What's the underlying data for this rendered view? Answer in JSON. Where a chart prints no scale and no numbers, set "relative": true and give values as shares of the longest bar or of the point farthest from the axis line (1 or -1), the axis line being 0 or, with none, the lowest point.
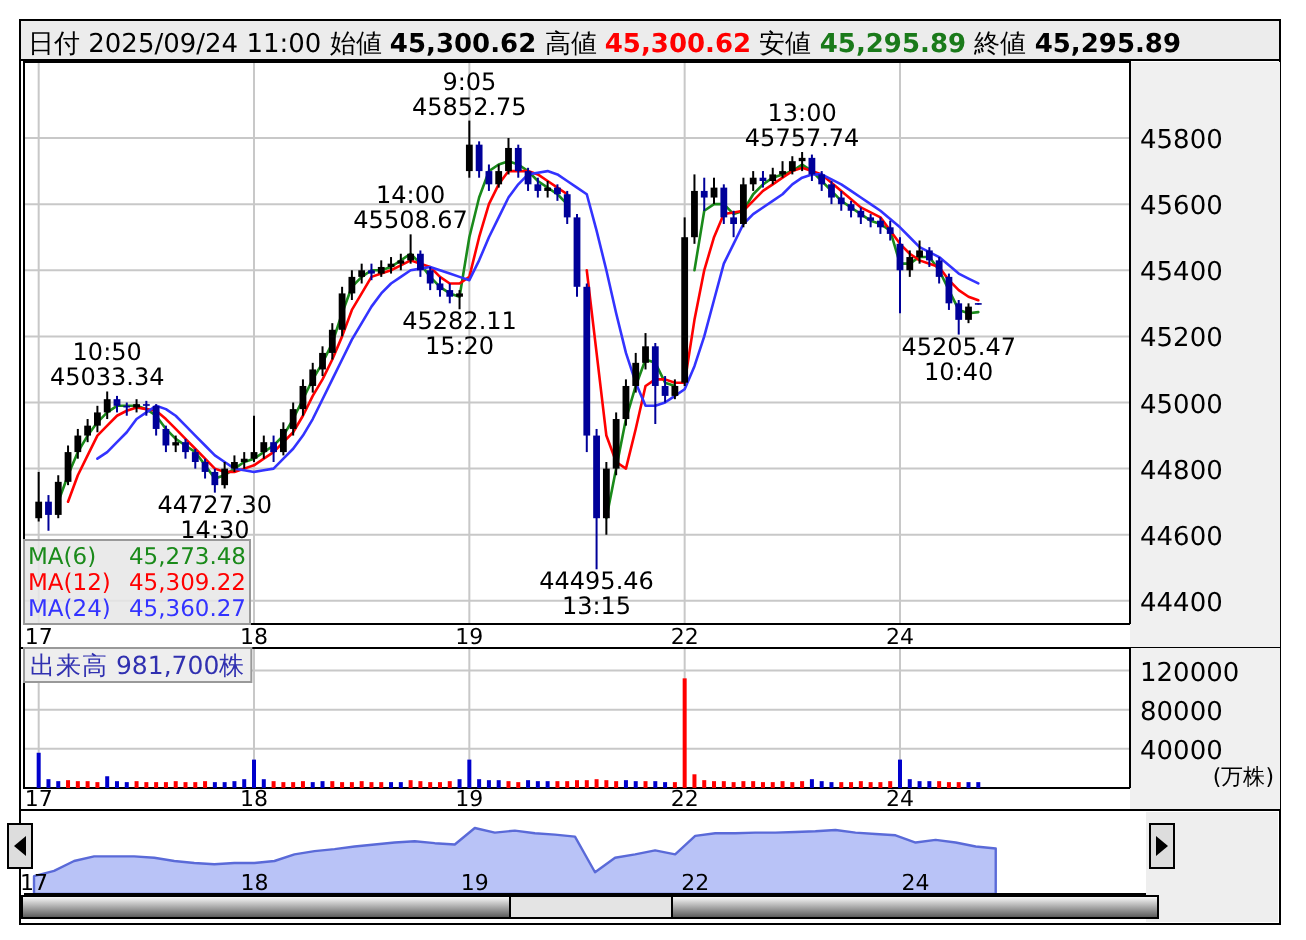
{
  "chart_data": [
    {
      "type": "candlestick",
      "title": "日付 2025/09/24 11:00",
      "ylim": [
        44330,
        46030
      ],
      "yticks": [
        44400,
        44600,
        44800,
        45000,
        45200,
        45400,
        45600,
        45800
      ],
      "grid": true,
      "legend": "bottom left",
      "categories": [
        null,
        "17",
        null,
        null,
        null,
        null,
        null,
        null,
        null,
        null,
        null,
        null,
        null,
        null,
        null,
        null,
        null,
        null,
        null,
        null,
        null,
        null,
        null,
        "18",
        null,
        null,
        null,
        null,
        null,
        null,
        null,
        null,
        null,
        null,
        null,
        null,
        null,
        null,
        null,
        null,
        null,
        null,
        null,
        null,
        null,
        "19",
        null,
        null,
        null,
        null,
        null,
        null,
        null,
        null,
        null,
        null,
        null,
        null,
        null,
        null,
        null,
        null,
        null,
        null,
        null,
        null,
        null,
        "22",
        null,
        null,
        null,
        null,
        null,
        null,
        null,
        null,
        null,
        null,
        null,
        null,
        null,
        null,
        null,
        null,
        null,
        null,
        null,
        null,
        null,
        "24",
        null,
        null,
        null,
        null,
        null,
        null,
        null,
        null,
        null,
        null,
        null,
        null,
        null,
        null,
        null,
        null,
        null,
        null,
        null,
        null,
        null,
        null,
        null
      ],
      "series": [
        {
          "colors": [
            null,
            "#000000",
            "#000099",
            "#000000",
            "#000000",
            "#000000",
            "#000000",
            "#000000",
            "#000000",
            "#000099",
            "#000099",
            "#000000",
            "#000099",
            "#000099",
            "#000099",
            "#000000",
            "#000099",
            "#000099",
            "#000099",
            "#000099",
            "#000000",
            "#000000",
            "#000000",
            "#000000",
            "#000000",
            "#000099",
            "#000000",
            "#000000",
            "#000000",
            "#000000",
            "#000000",
            "#000000",
            "#000000",
            "#000000",
            "#000000",
            "#000099",
            "#000000",
            "#000000",
            "#000000",
            "#000000",
            "#000099",
            "#000099",
            "#000099",
            "#000099",
            "#000000",
            "#000000",
            "#000099",
            "#000099",
            "#000000",
            "#000000",
            "#000099",
            "#000099",
            "#000099",
            "#000000",
            "#000099",
            "#000099",
            "#000099",
            "#000099",
            "#000099",
            "#000000",
            "#000000",
            "#000000",
            "#000000",
            "#000000",
            "#000099",
            "#000099",
            "#000000",
            "#000000",
            "#000000",
            "#000099",
            "#000000",
            "#000099",
            "#000099",
            "#000000",
            "#000000",
            "#000099",
            "#000000",
            "#000000",
            "#000000",
            "#000000",
            "#000099",
            "#000099",
            "#000099",
            "#000099",
            "#000099",
            "#000099",
            "#000099",
            "#000099",
            "#000099",
            "#000099",
            "#000000",
            "#000000",
            "#000099",
            "#000099",
            "#000099",
            "#000099",
            "#000000",
            "#000099",
            null,
            null,
            null,
            null,
            null,
            null,
            null,
            null,
            null,
            null,
            null,
            null,
            null,
            null,
            null
          ],
          "ohlc": [
            null,
            [
              44650,
              44790,
              44640,
              44700
            ],
            [
              44700,
              44720,
              44612.07,
              44660
            ],
            [
              44660,
              44780,
              44650,
              44760
            ],
            [
              44760,
              44870,
              44750,
              44850
            ],
            [
              44850,
              44920,
              44830,
              44900
            ],
            [
              44900,
              44950,
              44880,
              44930
            ],
            [
              44930,
              44990,
              44910,
              44970
            ],
            [
              44970,
              45033.34,
              44950,
              45010
            ],
            [
              45010,
              45020,
              44970,
              44990
            ],
            [
              44990,
              45000,
              44960,
              44985
            ],
            [
              44985,
              45010,
              44970,
              44995
            ],
            [
              44995,
              45005,
              44960,
              44990
            ],
            [
              44990,
              44995,
              44900,
              44920
            ],
            [
              44920,
              44930,
              44850,
              44870
            ],
            [
              44870,
              44900,
              44850,
              44880
            ],
            [
              44880,
              44890,
              44830,
              44850
            ],
            [
              44850,
              44860,
              44800,
              44820
            ],
            [
              44820,
              44830,
              44770,
              44790
            ],
            [
              44790,
              44800,
              44727.3,
              44750
            ],
            [
              44750,
              44820,
              44740,
              44800
            ],
            [
              44800,
              44840,
              44790,
              44820
            ],
            [
              44820,
              44850,
              44800,
              44830
            ],
            [
              44830,
              44960,
              44820,
              44850
            ],
            [
              44850,
              44900,
              44830,
              44880
            ],
            [
              44880,
              44900,
              44820,
              44850
            ],
            [
              44850,
              44940,
              44840,
              44920
            ],
            [
              44920,
              45000,
              44900,
              44980
            ],
            [
              44980,
              45070,
              44960,
              45050
            ],
            [
              45050,
              45120,
              45030,
              45100
            ],
            [
              45100,
              45170,
              45080,
              45150
            ],
            [
              45150,
              45240,
              45130,
              45220
            ],
            [
              45220,
              45350,
              45200,
              45330
            ],
            [
              45330,
              45400,
              45310,
              45380
            ],
            [
              45380,
              45420,
              45360,
              45400
            ],
            [
              45400,
              45420,
              45370,
              45390
            ],
            [
              45390,
              45430,
              45380,
              45410
            ],
            [
              45410,
              45440,
              45390,
              45420
            ],
            [
              45420,
              45450,
              45400,
              45430
            ],
            [
              45430,
              45508.67,
              45420,
              45450
            ],
            [
              45450,
              45460,
              45380,
              45400
            ],
            [
              45400,
              45410,
              45340,
              45360
            ],
            [
              45360,
              45380,
              45320,
              45340
            ],
            [
              45340,
              45360,
              45300,
              45320
            ],
            [
              45320,
              45340,
              45282.11,
              45330
            ],
            [
              45700,
              45852.75,
              45680,
              45780
            ],
            [
              45780,
              45790,
              45680,
              45700
            ],
            [
              45700,
              45720,
              45640,
              45660
            ],
            [
              45660,
              45720,
              45650,
              45700
            ],
            [
              45700,
              45800,
              45690,
              45770
            ],
            [
              45770,
              45780,
              45680,
              45700
            ],
            [
              45700,
              45710,
              45640,
              45660
            ],
            [
              45660,
              45680,
              45620,
              45640
            ],
            [
              45640,
              45670,
              45620,
              45650
            ],
            [
              45650,
              45660,
              45610,
              45630
            ],
            [
              45630,
              45640,
              45540,
              45560
            ],
            [
              45560,
              45570,
              45320,
              45350
            ],
            [
              45350,
              45360,
              44850,
              44900
            ],
            [
              44900,
              44920,
              44495.46,
              44650
            ],
            [
              44650,
              44820,
              44600,
              44800
            ],
            [
              44800,
              44970,
              44780,
              44950
            ],
            [
              44950,
              45070,
              44930,
              45050
            ],
            [
              45050,
              45150,
              45030,
              45120
            ],
            [
              45120,
              45210,
              45100,
              45170
            ],
            [
              45170,
              45180,
              44935,
              45050
            ],
            [
              45050,
              45080,
              45000,
              45020
            ],
            [
              45020,
              45070,
              45010,
              45050
            ],
            [
              45060,
              45560,
              45050,
              45500
            ],
            [
              45500,
              45690,
              45480,
              45640
            ],
            [
              45640,
              45680,
              45580,
              45620
            ],
            [
              45620,
              45680,
              45600,
              45650
            ],
            [
              45650,
              45660,
              45540,
              45560
            ],
            [
              45560,
              45580,
              45500,
              45540
            ],
            [
              45540,
              45680,
              45530,
              45660
            ],
            [
              45660,
              45700,
              45640,
              45680
            ],
            [
              45680,
              45700,
              45650,
              45670
            ],
            [
              45670,
              45710,
              45660,
              45690
            ],
            [
              45690,
              45730,
              45680,
              45700
            ],
            [
              45700,
              45745,
              45690,
              45730
            ],
            [
              45730,
              45757.74,
              45700,
              45740
            ],
            [
              45740,
              45750,
              45670,
              45690
            ],
            [
              45690,
              45700,
              45640,
              45660
            ],
            [
              45660,
              45670,
              45600,
              45620
            ],
            [
              45620,
              45640,
              45580,
              45600
            ],
            [
              45600,
              45610,
              45560,
              45580
            ],
            [
              45580,
              45590,
              45540,
              45560
            ],
            [
              45560,
              45570,
              45530,
              45550
            ],
            [
              45550,
              45560,
              45510,
              45530
            ],
            [
              45530,
              45550,
              45490,
              45510
            ],
            [
              45480,
              45500,
              45270,
              45400
            ],
            [
              45400,
              45460,
              45380,
              45440
            ],
            [
              45440,
              45490,
              45420,
              45460
            ],
            [
              45460,
              45470,
              45410,
              45430
            ],
            [
              45430,
              45440,
              45360,
              45380
            ],
            [
              45380,
              45390,
              45280,
              45300
            ],
            [
              45300,
              45310,
              45205.47,
              45250
            ],
            [
              45250,
              45300,
              45240,
              45290
            ],
            [
              45300.62,
              45300.62,
              45295.89,
              45295.89
            ],
            null,
            null,
            null,
            null,
            null,
            null,
            null,
            null,
            null,
            null,
            null,
            null,
            null,
            null,
            null
          ]
        },
        {
          "type": "line",
          "name": "MA(6)",
          "color": "#1a8a1a",
          "values": [
            null,
            null,
            null,
            44700,
            44780,
            44850,
            44900,
            44940,
            44970,
            44990,
            44990,
            44990,
            44980,
            44960,
            44920,
            44890,
            44870,
            44850,
            44810,
            44770,
            44780,
            44800,
            44820,
            44830,
            44850,
            44870,
            44900,
            44950,
            45010,
            45070,
            45120,
            45180,
            45270,
            45350,
            45380,
            45400,
            45400,
            45410,
            45430,
            45450,
            45420,
            45380,
            45350,
            45330,
            45320,
            45500,
            45620,
            45700,
            45720,
            45730,
            45720,
            45700,
            45670,
            45650,
            45630,
            45600,
            null,
            null,
            null,
            44650,
            44800,
            44950,
            45050,
            45130,
            45120,
            45060,
            45050,
            null,
            45400,
            45580,
            45600,
            45600,
            45570,
            45580,
            45630,
            45660,
            45680,
            45690,
            45700,
            45720,
            45700,
            45670,
            45640,
            45610,
            45590,
            45570,
            45550,
            45540,
            45520,
            45420,
            45420,
            45440,
            45440,
            45400,
            45340,
            45280,
            45270,
            45273.48,
            null,
            null,
            null,
            null,
            null,
            null,
            null,
            null,
            null,
            null,
            null,
            null,
            null,
            null,
            null
          ]
        },
        {
          "type": "line",
          "name": "MA(12)",
          "color": "#ff0000",
          "values": [
            null,
            null,
            null,
            null,
            44700,
            44780,
            44840,
            44900,
            44930,
            44960,
            44975,
            44985,
            44980,
            44975,
            44950,
            44920,
            44890,
            44860,
            44830,
            44800,
            44790,
            44790,
            44800,
            44810,
            44830,
            44850,
            44880,
            44910,
            44960,
            45020,
            45070,
            45130,
            45200,
            45280,
            45330,
            45380,
            45390,
            45400,
            45415,
            45430,
            45420,
            45410,
            45380,
            45360,
            45360,
            45380,
            45500,
            45600,
            45660,
            45700,
            45700,
            45700,
            45690,
            45670,
            45650,
            45630,
            null,
            45400,
            45150,
            44900,
            44820,
            44800,
            44920,
            45050,
            45070,
            45070,
            45060,
            45060,
            45250,
            45400,
            45500,
            45570,
            45575,
            45580,
            45610,
            45640,
            45660,
            45680,
            45700,
            45710,
            45700,
            45690,
            45665,
            45640,
            45615,
            45590,
            45575,
            45560,
            45520,
            45480,
            45450,
            45430,
            45420,
            45410,
            45370,
            45340,
            45320,
            45309.22,
            null,
            null,
            null,
            null,
            null,
            null,
            null,
            null,
            null,
            null,
            null,
            null,
            null,
            null,
            null
          ]
        },
        {
          "type": "line",
          "name": "MA(24)",
          "color": "#3333ff",
          "values": [
            null,
            null,
            null,
            null,
            null,
            null,
            null,
            44830,
            44850,
            44880,
            44910,
            44950,
            44970,
            44990,
            44980,
            44960,
            44930,
            44900,
            44870,
            44840,
            44820,
            44800,
            44795,
            44790,
            44795,
            44800,
            44830,
            44860,
            44900,
            44950,
            45010,
            45070,
            45130,
            45190,
            45240,
            45290,
            45330,
            45360,
            45380,
            45400,
            45405,
            45410,
            45400,
            45390,
            45380,
            45370,
            45430,
            45500,
            45560,
            45620,
            45660,
            45690,
            45695,
            45700,
            45690,
            45670,
            45650,
            45630,
            45520,
            45400,
            45270,
            45150,
            45060,
            44990,
            44990,
            45000,
            45020,
            45040,
            45110,
            45200,
            45310,
            45420,
            45480,
            45540,
            45570,
            45590,
            45610,
            45630,
            45660,
            45680,
            45690,
            45690,
            45675,
            45660,
            45640,
            45620,
            45600,
            45580,
            45555,
            45530,
            45500,
            45470,
            45455,
            45440,
            45415,
            45390,
            45375,
            45360.27,
            null,
            null,
            null,
            null,
            null,
            null,
            null,
            null,
            null,
            null,
            null,
            null,
            null,
            null,
            null
          ]
        }
      ],
      "annotations": [
        "始値 45,300.62",
        "高値 45,300.62",
        "安値 45,295.89",
        "終値 45,295.89",
        "45,273.48",
        "45,309.22",
        "45,360.27",
        {
          "text": "10:50\n45033.34",
          "y": 45033.34
        },
        {
          "text": "44727.30\n14:30",
          "y": 44727.3
        },
        {
          "text": "14:00\n45508.67",
          "y": 45508.67
        },
        {
          "text": "45282.11\n15:20",
          "y": 45282.11
        },
        {
          "text": "9:05\n45852.75",
          "y": 45852.75
        },
        {
          "text": "44495.46\n13:15",
          "y": 44495.46
        },
        {
          "text": "13:00\n45757.74",
          "y": 45757.74
        },
        {
          "text": "45205.47\n10:40",
          "y": 45205.47
        }
      ]
    },
    {
      "type": "bar",
      "title": "出来高 981,700株",
      "ylabel": "(万株)",
      "ylim": [
        0,
        143000
      ],
      "yticks": [
        40000,
        80000,
        120000
      ],
      "grid": true,
      "categories": [
        null,
        "17",
        null,
        null,
        null,
        null,
        null,
        null,
        null,
        null,
        null,
        null,
        null,
        null,
        null,
        null,
        null,
        null,
        null,
        null,
        null,
        null,
        null,
        "18",
        null,
        null,
        null,
        null,
        null,
        null,
        null,
        null,
        null,
        null,
        null,
        null,
        null,
        null,
        null,
        null,
        null,
        null,
        null,
        null,
        null,
        "19",
        null,
        null,
        null,
        null,
        null,
        null,
        null,
        null,
        null,
        null,
        null,
        null,
        null,
        null,
        null,
        null,
        null,
        null,
        null,
        null,
        null,
        "22",
        null,
        null,
        null,
        null,
        null,
        null,
        null,
        null,
        null,
        null,
        null,
        null,
        null,
        null,
        null,
        null,
        null,
        null,
        null,
        null,
        null,
        "24",
        null,
        null,
        null,
        null,
        null,
        null,
        null,
        null,
        null,
        null,
        null,
        null,
        null,
        null,
        null,
        null,
        null,
        null,
        null,
        null,
        null,
        null,
        null
      ],
      "series": [
        {
          "values": [
            null,
            36000,
            9000,
            7000,
            8000,
            7000,
            7000,
            6000,
            12000,
            7000,
            6000,
            7000,
            6000,
            6000,
            6000,
            7000,
            6000,
            6000,
            7000,
            6000,
            6000,
            7000,
            9000,
            29000,
            9000,
            7000,
            6000,
            6000,
            7000,
            6000,
            7000,
            7000,
            6000,
            6000,
            7000,
            6000,
            6000,
            6000,
            6000,
            8000,
            7000,
            6000,
            6000,
            7000,
            9000,
            29000,
            9000,
            8000,
            8000,
            7000,
            6000,
            8000,
            7000,
            7000,
            7000,
            7000,
            8000,
            8000,
            9000,
            8000,
            7000,
            8000,
            7000,
            7000,
            7000,
            6000,
            6000,
            112000,
            14000,
            8000,
            7000,
            7000,
            6000,
            7000,
            7000,
            6000,
            6000,
            7000,
            6000,
            7000,
            9000,
            7000,
            6000,
            6000,
            6000,
            7000,
            6000,
            6000,
            7000,
            29000,
            9000,
            7000,
            7000,
            7000,
            6000,
            6000,
            6000,
            6000,
            null,
            null,
            null,
            null,
            null,
            null,
            null,
            null,
            null,
            null,
            null,
            null,
            null,
            null,
            null
          ],
          "colors": [
            null,
            "#0000cc",
            "#0000cc",
            "#0000cc",
            "#ff0000",
            "#ff0000",
            "#ff0000",
            "#ff0000",
            "#0000cc",
            "#0000cc",
            "#0000cc",
            "#ff0000",
            "#ff0000",
            "#ff0000",
            "#ff0000",
            "#ff0000",
            "#ff0000",
            "#ff0000",
            "#ff0000",
            "#0000cc",
            "#0000cc",
            "#0000cc",
            "#0000cc",
            "#0000cc",
            "#0000cc",
            "#ff0000",
            "#ff0000",
            "#ff0000",
            "#ff0000",
            "#0000cc",
            "#0000cc",
            "#ff0000",
            "#ff0000",
            "#ff0000",
            "#ff0000",
            "#ff0000",
            "#ff0000",
            "#0000cc",
            "#0000cc",
            "#ff0000",
            "#ff0000",
            "#ff0000",
            "#ff0000",
            "#ff0000",
            "#0000cc",
            "#0000cc",
            "#0000cc",
            "#0000cc",
            "#0000cc",
            "#ff0000",
            "#ff0000",
            "#0000cc",
            "#0000cc",
            "#0000cc",
            "#ff0000",
            "#ff0000",
            "#ff0000",
            "#ff0000",
            "#ff0000",
            "#ff0000",
            "#ff0000",
            "#0000cc",
            "#0000cc",
            "#ff0000",
            "#0000cc",
            "#0000cc",
            "#ff0000",
            "#ff0000",
            "#ff0000",
            "#ff0000",
            "#ff0000",
            "#ff0000",
            "#ff0000",
            "#ff0000",
            "#ff0000",
            "#ff0000",
            "#ff0000",
            "#ff0000",
            "#ff0000",
            "#ff0000",
            "#0000cc",
            "#0000cc",
            "#0000cc",
            "#ff0000",
            "#ff0000",
            "#ff0000",
            "#ff0000",
            "#ff0000",
            "#ff0000",
            "#0000cc",
            "#0000cc",
            "#0000cc",
            "#0000cc",
            "#ff0000",
            "#ff0000",
            "#ff0000",
            "#0000cc",
            "#0000cc",
            null,
            null,
            null,
            null,
            null,
            null,
            null,
            null,
            null,
            null,
            null,
            null,
            null,
            null,
            null
          ]
        }
      ]
    },
    {
      "type": "area",
      "relative": true,
      "categories": [
        "17",
        null,
        null,
        null,
        null,
        null,
        null,
        null,
        null,
        null,
        null,
        "18",
        null,
        null,
        null,
        null,
        null,
        null,
        null,
        null,
        null,
        null,
        "19",
        null,
        null,
        null,
        null,
        null,
        null,
        null,
        null,
        null,
        null,
        "22",
        null,
        null,
        null,
        null,
        null,
        null,
        null,
        null,
        null,
        null,
        "24",
        null,
        null,
        null,
        null,
        null,
        null,
        null,
        null,
        null,
        null,
        null
      ],
      "series": [
        {
          "color": "#5a6ad8",
          "values": [
            0.27,
            0.35,
            0.5,
            0.57,
            0.57,
            0.57,
            0.55,
            0.5,
            0.47,
            0.45,
            0.47,
            0.47,
            0.5,
            0.6,
            0.65,
            0.68,
            0.72,
            0.75,
            0.78,
            0.8,
            0.77,
            0.75,
            1.0,
            0.93,
            0.96,
            0.92,
            0.9,
            0.87,
            0.33,
            0.55,
            0.6,
            0.66,
            0.6,
            0.88,
            0.92,
            0.92,
            0.93,
            0.93,
            0.94,
            0.95,
            0.97,
            0.93,
            0.91,
            0.89,
            0.78,
            0.82,
            0.78,
            0.72,
            0.69,
            null,
            null,
            null,
            null,
            null,
            null,
            null
          ]
        }
      ]
    }
  ]
}
